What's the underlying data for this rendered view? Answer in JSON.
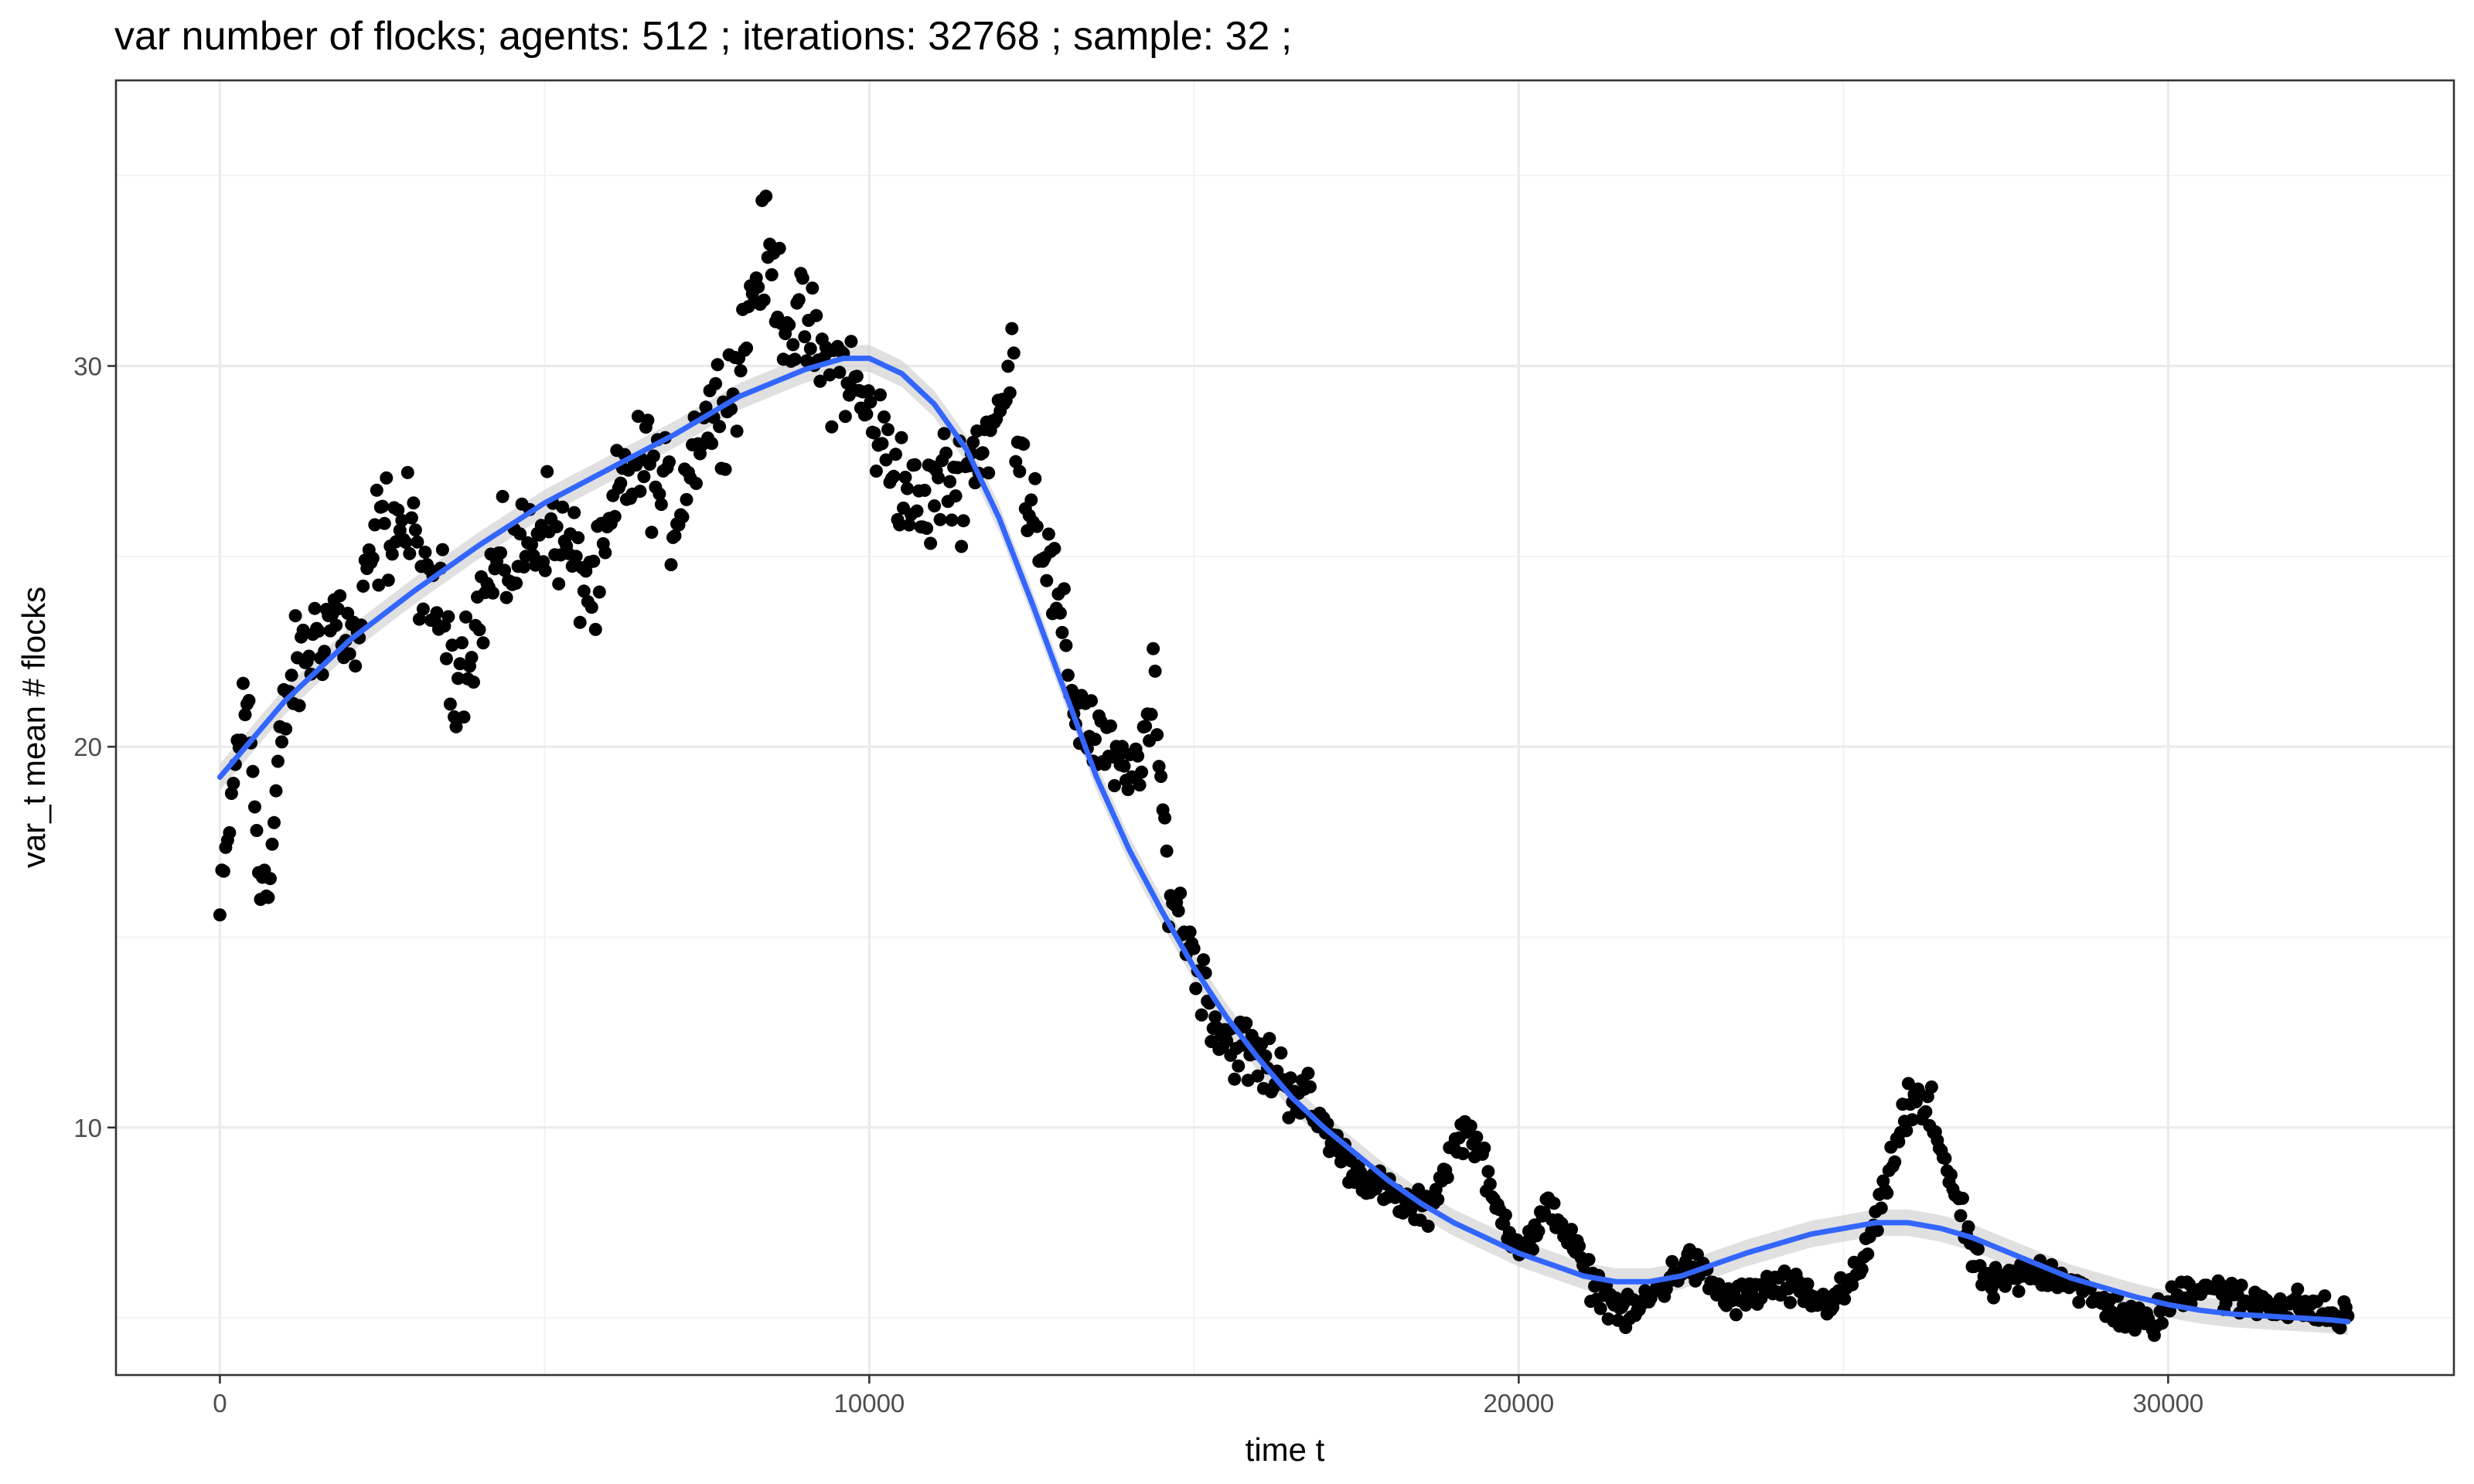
{
  "chart_data": {
    "type": "scatter",
    "title": "var number of flocks; agents: 512 ; iterations: 32768 ; sample: 32 ;",
    "xlabel": "time t",
    "ylabel": "var_t mean # flocks",
    "xlim": [
      -1600,
      34400
    ],
    "ylim": [
      3.5,
      37.5
    ],
    "x_ticks": [
      0,
      10000,
      20000,
      30000
    ],
    "y_ticks": [
      10,
      20,
      30
    ],
    "grid": true,
    "legend": "none",
    "point_color": "#000000",
    "smooth_color": "#3366FF",
    "ribbon_color": "#cccccc",
    "anchors": {
      "x": [
        0,
        150,
        300,
        450,
        600,
        750,
        900,
        1050,
        1200,
        1500,
        1800,
        2100,
        2400,
        2700,
        3000,
        3200,
        3400,
        3600,
        3800,
        4200,
        4600,
        5000,
        5400,
        5800,
        6200,
        6600,
        7000,
        7400,
        7700,
        8000,
        8200,
        8400,
        8600,
        8800,
        9000,
        9300,
        9600,
        9900,
        10200,
        10500,
        10800,
        11100,
        11400,
        11700,
        12000,
        12200,
        12400,
        12600,
        12800,
        13000,
        13200,
        13400,
        13600,
        13800,
        14000,
        14200,
        14400,
        14600,
        14800,
        15000,
        15400,
        15800,
        16200,
        16600,
        17000,
        17400,
        17800,
        18200,
        18600,
        19000,
        19200,
        19400,
        19600,
        19800,
        20000,
        20200,
        20500,
        20800,
        21100,
        21400,
        21700,
        22000,
        22300,
        22600,
        22900,
        23200,
        23500,
        23800,
        24100,
        24400,
        24700,
        25000,
        25300,
        25600,
        25800,
        26000,
        26200,
        26400,
        26600,
        26800,
        27000,
        27300,
        27600,
        27900,
        28200,
        28500,
        28800,
        29100,
        29400,
        29700,
        30000,
        30300,
        30600,
        30900,
        31200,
        31500,
        31800,
        32100,
        32400,
        32700
      ],
      "y": [
        15.5,
        18,
        20.5,
        21,
        17,
        16,
        19.5,
        21.5,
        22,
        23,
        23.5,
        22.5,
        25.5,
        26,
        25.5,
        23.5,
        24,
        22,
        22.5,
        24.5,
        25,
        26,
        25,
        24,
        27,
        27.5,
        26,
        28.5,
        29,
        30,
        32,
        33,
        32,
        31,
        31,
        30,
        30,
        29,
        28,
        27,
        26,
        27,
        27,
        28,
        28.5,
        30,
        27,
        26,
        24.5,
        22.5,
        21,
        20.5,
        20,
        19.5,
        19,
        20,
        21,
        16.5,
        15.5,
        14.5,
        12.5,
        12,
        11.5,
        11,
        10,
        9,
        8.5,
        8,
        7.8,
        9.5,
        10,
        9.5,
        8,
        7.5,
        7,
        7,
        8,
        7,
        6,
        5.5,
        5,
        5.5,
        6,
        6.5,
        6,
        5.5,
        5.5,
        5.8,
        5.8,
        5.6,
        5.4,
        5.6,
        6.5,
        8,
        9.5,
        10.5,
        10.5,
        10,
        9,
        7.8,
        6.5,
        5.8,
        6,
        6.2,
        6.2,
        6,
        5.5,
        5.3,
        5,
        4.8,
        5.3,
        5.8,
        5.9,
        5.6,
        5.4,
        5.5,
        5.3,
        5.3,
        5.1,
        5
      ]
    },
    "trend": {
      "x": [
        0,
        1000,
        2000,
        3000,
        4000,
        5000,
        6000,
        7000,
        8000,
        9000,
        9600,
        10000,
        10500,
        11000,
        11500,
        12000,
        12500,
        13000,
        13500,
        14000,
        14500,
        15000,
        15500,
        16000,
        16500,
        17000,
        17500,
        18000,
        18500,
        19000,
        19500,
        20000,
        20500,
        21000,
        21500,
        22000,
        22500,
        23000,
        23500,
        24000,
        24500,
        25000,
        25500,
        26000,
        26500,
        27000,
        27500,
        28000,
        28500,
        29000,
        29500,
        30000,
        30500,
        31000,
        31500,
        32000,
        32500,
        32768
      ],
      "y": [
        19.2,
        21.2,
        22.8,
        24.1,
        25.3,
        26.4,
        27.3,
        28.2,
        29.2,
        29.9,
        30.2,
        30.2,
        29.8,
        29,
        27.8,
        26,
        23.8,
        21.5,
        19.2,
        17.3,
        15.7,
        14.2,
        12.9,
        11.8,
        10.8,
        10,
        9.3,
        8.6,
        8,
        7.5,
        7.1,
        6.7,
        6.4,
        6.1,
        5.95,
        5.95,
        6.1,
        6.4,
        6.7,
        6.95,
        7.2,
        7.35,
        7.5,
        7.5,
        7.35,
        7.1,
        6.75,
        6.4,
        6.05,
        5.8,
        5.55,
        5.35,
        5.2,
        5.1,
        5.05,
        5,
        4.95,
        4.9
      ]
    },
    "point_count": 1100
  }
}
